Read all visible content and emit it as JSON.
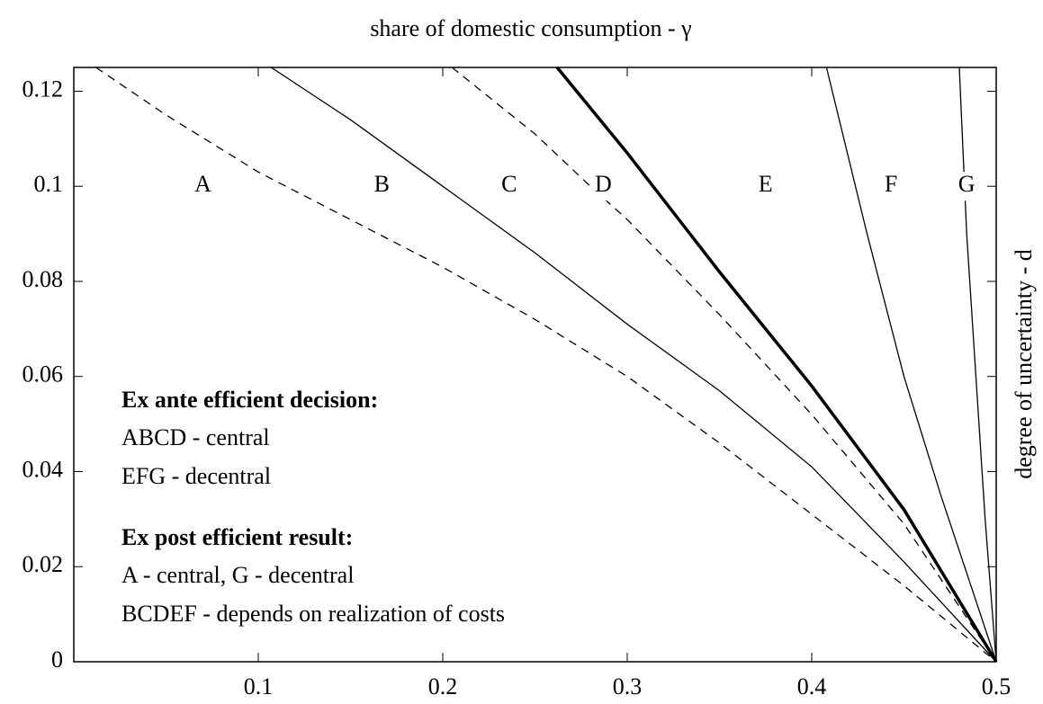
{
  "chart_data": {
    "type": "line",
    "title": "share of domestic consumption - γ",
    "y_label": "degree of uncertainty - d",
    "xlim": [
      0,
      0.5
    ],
    "ylim": [
      0,
      0.125
    ],
    "xticks": [
      0.1,
      0.2,
      0.3,
      0.4,
      0.5
    ],
    "yticks": [
      0,
      0.02,
      0.04,
      0.06,
      0.08,
      0.1,
      0.12
    ],
    "series": [
      {
        "color": "#000000",
        "style": "dashed",
        "width": 1.3,
        "x": [
          0.012,
          0.05,
          0.1,
          0.15,
          0.2,
          0.25,
          0.3,
          0.35,
          0.4,
          0.45,
          0.5
        ],
        "values": [
          0.125,
          0.115,
          0.103,
          0.093,
          0.083,
          0.072,
          0.06,
          0.046,
          0.031,
          0.016,
          0
        ]
      },
      {
        "color": "#000000",
        "style": "solid",
        "width": 1.3,
        "x": [
          0.107,
          0.15,
          0.2,
          0.25,
          0.3,
          0.35,
          0.4,
          0.45,
          0.5
        ],
        "values": [
          0.125,
          0.114,
          0.1,
          0.086,
          0.071,
          0.057,
          0.041,
          0.021,
          0
        ]
      },
      {
        "color": "#000000",
        "style": "dashed",
        "width": 1.3,
        "x": [
          0.205,
          0.25,
          0.28,
          0.3,
          0.35,
          0.4,
          0.45,
          0.5
        ],
        "values": [
          0.125,
          0.111,
          0.1,
          0.093,
          0.073,
          0.052,
          0.029,
          0
        ]
      },
      {
        "color": "#000000",
        "style": "solid",
        "width": 3.5,
        "x": [
          0.262,
          0.3,
          0.35,
          0.4,
          0.45,
          0.5
        ],
        "values": [
          0.125,
          0.107,
          0.082,
          0.058,
          0.032,
          0
        ]
      },
      {
        "color": "#000000",
        "style": "solid",
        "width": 1.3,
        "x": [
          0.408,
          0.43,
          0.45,
          0.47,
          0.5
        ],
        "values": [
          0.125,
          0.09,
          0.06,
          0.035,
          0
        ]
      },
      {
        "color": "#000000",
        "style": "solid",
        "width": 1.3,
        "x": [
          0.48,
          0.484,
          0.489,
          0.494,
          0.5
        ],
        "values": [
          0.125,
          0.09,
          0.06,
          0.03,
          0
        ]
      }
    ],
    "region_labels": [
      {
        "text": "A",
        "x": 0.07,
        "y": 0.1
      },
      {
        "text": "B",
        "x": 0.167,
        "y": 0.1
      },
      {
        "text": "C",
        "x": 0.236,
        "y": 0.1
      },
      {
        "text": "D",
        "x": 0.287,
        "y": 0.1
      },
      {
        "text": "E",
        "x": 0.375,
        "y": 0.1
      },
      {
        "text": "F",
        "x": 0.443,
        "y": 0.1
      },
      {
        "text": "G",
        "x": 0.484,
        "y": 0.1
      }
    ],
    "annotations": [
      {
        "text": "Ex ante efficient decision:",
        "bold": true
      },
      {
        "text": "ABCD - central",
        "bold": false
      },
      {
        "text": "EFG - decentral",
        "bold": false
      },
      {
        "text": "Ex post efficient result:",
        "bold": true
      },
      {
        "text": "A - central, G - decentral",
        "bold": false
      },
      {
        "text": "BCDEF - depends on realization of costs",
        "bold": false
      }
    ]
  }
}
